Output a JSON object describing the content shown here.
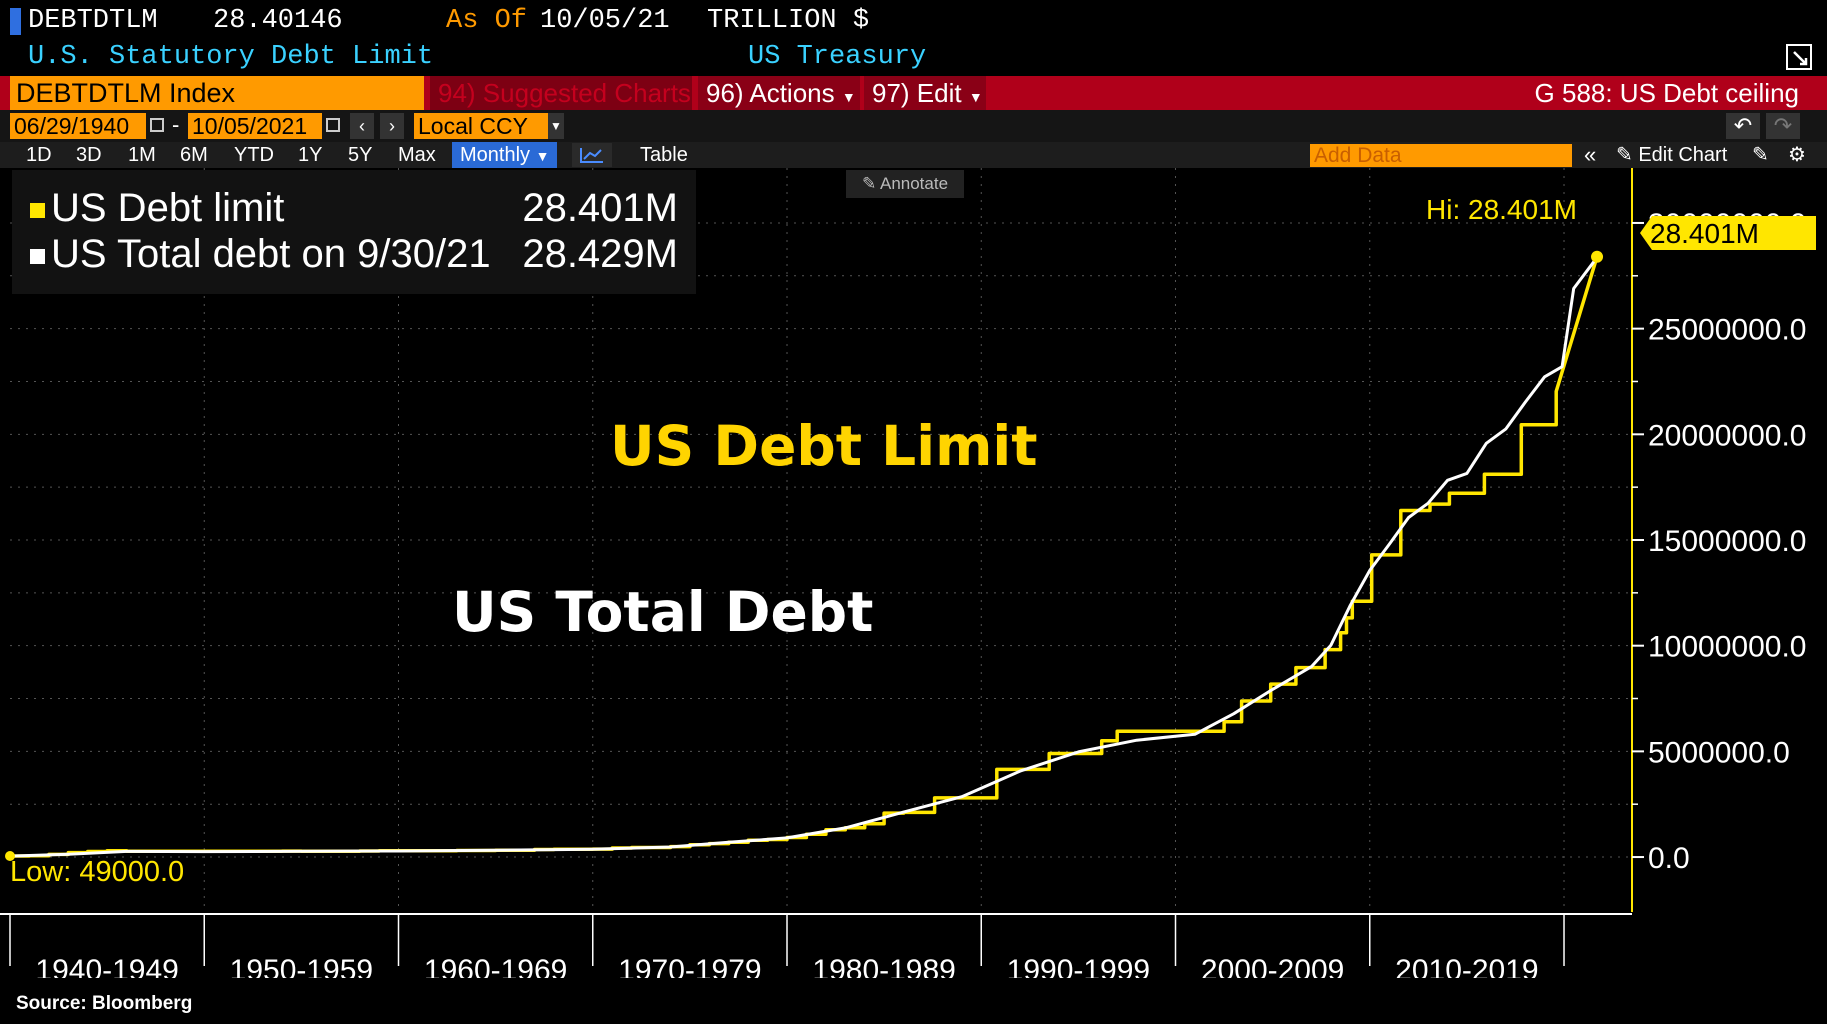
{
  "header": {
    "ticker": "DEBTDTLM",
    "last_value": "28.40146",
    "as_of_label": "As Of",
    "as_of_date": "10/05/21",
    "units": "TRILLION $",
    "description": "U.S. Statutory Debt Limit",
    "source_name": "US Treasury"
  },
  "toolbar": {
    "index_field": "DEBTDTLM Index",
    "suggested_charts": "94) Suggested Charts",
    "actions": "96) Actions",
    "edit": "97) Edit",
    "function_title": "G 588: US Debt ceiling",
    "start_date": "06/29/1940",
    "end_date": "10/05/2021",
    "currency": "Local CCY",
    "ranges": [
      "1D",
      "3D",
      "1M",
      "6M",
      "YTD",
      "1Y",
      "5Y",
      "Max"
    ],
    "periodicity": "Monthly",
    "table_label": "Table",
    "add_data_placeholder": "Add Data",
    "edit_chart": "Edit Chart",
    "annotate": "Annotate"
  },
  "legend": {
    "items": [
      {
        "label": "US Debt limit",
        "value": "28.401M",
        "color": "#ffe600"
      },
      {
        "label": "US Total debt on 9/30/21",
        "value": "28.429M",
        "color": "#ffffff"
      }
    ]
  },
  "annotations": {
    "limit_text": "US Debt Limit",
    "total_text": "US Total Debt",
    "hi_label": "Hi: 28.401M",
    "low_label": "Low: 49000.0",
    "last_price_tag": "28.401M"
  },
  "source": "Source: Bloomberg",
  "chart_data": {
    "type": "line",
    "x_ticks": [
      "1940-1949",
      "1950-1959",
      "1960-1969",
      "1970-1979",
      "1980-1989",
      "1990-1999",
      "2000-2009",
      "2010-2019"
    ],
    "y_ticks": [
      "0.0",
      "5000000.0",
      "10000000.0",
      "15000000.0",
      "20000000.0",
      "25000000.0",
      "30000000.0"
    ],
    "xlim": [
      1940,
      2023.5
    ],
    "ylim": [
      -2600000,
      32600000
    ],
    "series": [
      {
        "name": "US Debt limit",
        "color": "#ffe600",
        "step": true,
        "x": [
          1940,
          1941,
          1942,
          1943,
          1944,
          1945,
          1946,
          1954,
          1955,
          1956,
          1958,
          1959,
          1962,
          1963,
          1965,
          1967,
          1968,
          1970,
          1971,
          1972,
          1974,
          1975,
          1976,
          1977,
          1978,
          1979,
          1980,
          1981,
          1982,
          1983,
          1984,
          1985,
          1986,
          1987.6,
          1990.8,
          1993.5,
          1996.2,
          1997,
          2002.5,
          2003.4,
          2004.9,
          2006.2,
          2007.7,
          2008.5,
          2008.8,
          2009.1,
          2010.1,
          2011.6,
          2013.1,
          2014.1,
          2015.9,
          2017.8,
          2019.6,
          2021.7
        ],
        "y": [
          49000,
          65000,
          125000,
          210000,
          260000,
          300000,
          275000,
          281000,
          278000,
          275000,
          288000,
          295000,
          300000,
          309000,
          324000,
          358000,
          365000,
          377000,
          430000,
          450000,
          495000,
          577000,
          636000,
          700000,
          798000,
          830000,
          925000,
          1079800,
          1290200,
          1389000,
          1573000,
          2078700,
          2111000,
          2800000,
          4145000,
          4900000,
          5500000,
          5950000,
          6400000,
          7384000,
          8184000,
          8965000,
          9815000,
          10615000,
          11315000,
          12104000,
          14294000,
          16394000,
          16699000,
          17212000,
          18113000,
          20456000,
          22030000,
          28401463
        ]
      },
      {
        "name": "US Total debt on 9/30/21",
        "color": "#ffffff",
        "step": false,
        "x": [
          1940,
          1943,
          1946,
          1950,
          1955,
          1960,
          1965,
          1970,
          1974,
          1977,
          1980,
          1983,
          1986,
          1989,
          1992,
          1995,
          1998,
          2001,
          2003,
          2005,
          2007,
          2008,
          2009,
          2010,
          2011,
          2012,
          2013,
          2014,
          2015,
          2016,
          2017,
          2018,
          2019,
          2019.9,
          2020.5,
          2021.75
        ],
        "y": [
          43000,
          136000,
          269000,
          257000,
          274000,
          286000,
          317000,
          371000,
          475000,
          699000,
          908000,
          1377000,
          2125000,
          2857000,
          4065000,
          4974000,
          5526000,
          5807000,
          6783000,
          7933000,
          9008000,
          10025000,
          11910000,
          13562000,
          14790000,
          16066000,
          16738000,
          17824000,
          18151000,
          19573000,
          20245000,
          21516000,
          22719000,
          23201000,
          26900000,
          28429000
        ]
      }
    ]
  }
}
